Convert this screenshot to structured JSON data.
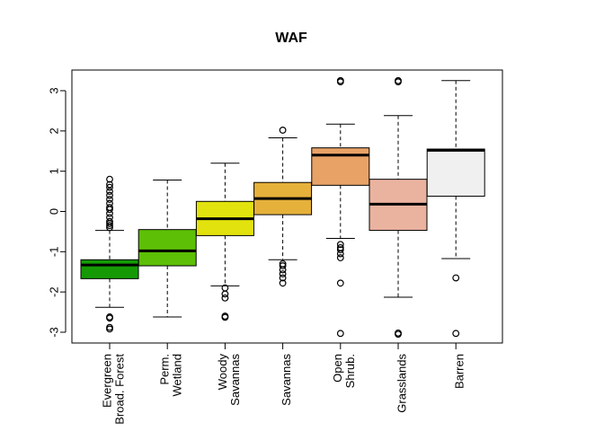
{
  "chart_data": {
    "type": "boxplot",
    "title": "WAF",
    "xlabel": "",
    "ylabel": "",
    "ylim": [
      -3.3,
      3.5
    ],
    "yticks": [
      "3",
      "2",
      "1",
      "0",
      "-1",
      "-2",
      "-3"
    ],
    "grid": false,
    "categories": [
      {
        "lines": [
          "Evergreen",
          "Broad. Forest"
        ],
        "color": "#159a06"
      },
      {
        "lines": [
          "Perm.",
          "Wetland"
        ],
        "color": "#5dbf06"
      },
      {
        "lines": [
          "Woody",
          "Savannas"
        ],
        "color": "#e2e20e"
      },
      {
        "lines": [
          "Savannas"
        ],
        "color": "#e6b13a"
      },
      {
        "lines": [
          "Open",
          "Shrub."
        ],
        "color": "#e8a266"
      },
      {
        "lines": [
          "Grasslands"
        ],
        "color": "#eab3a0"
      },
      {
        "lines": [
          "Barren"
        ],
        "color": "#f0f0f0"
      }
    ],
    "boxes": [
      {
        "min": -2.38,
        "q1": -1.67,
        "median": -1.33,
        "q3": -1.2,
        "max": -0.47,
        "outliers": [
          0.8,
          0.67,
          0.6,
          0.5,
          0.4,
          0.3,
          0.2,
          0.1,
          0.05,
          -0.05,
          -0.15,
          -0.25,
          -0.3,
          -0.35,
          -0.4,
          -2.62,
          -2.65,
          -2.88,
          -2.92
        ]
      },
      {
        "min": -2.62,
        "q1": -1.35,
        "median": -0.98,
        "q3": -0.45,
        "max": 0.78,
        "outliers": []
      },
      {
        "min": -1.85,
        "q1": -0.6,
        "median": -0.18,
        "q3": 0.25,
        "max": 1.2,
        "outliers": [
          -1.9,
          -2.05,
          -2.15,
          -2.6,
          -2.63
        ]
      },
      {
        "min": -1.2,
        "q1": -0.08,
        "median": 0.32,
        "q3": 0.72,
        "max": 1.83,
        "outliers": [
          2.02,
          -1.3,
          -1.35,
          -1.45,
          -1.55,
          -1.65,
          -1.78
        ]
      },
      {
        "min": -0.67,
        "q1": 0.65,
        "median": 1.4,
        "q3": 1.58,
        "max": 2.17,
        "outliers": [
          3.25,
          3.22,
          -0.82,
          -0.9,
          -0.95,
          -1.05,
          -1.15,
          -1.78,
          -3.03
        ]
      },
      {
        "min": -2.13,
        "q1": -0.47,
        "median": 0.18,
        "q3": 0.8,
        "max": 2.38,
        "outliers": [
          3.25,
          3.22,
          -3.02,
          -3.05
        ]
      },
      {
        "min": -1.17,
        "q1": 0.38,
        "median": 1.52,
        "q3": 1.55,
        "max": 3.25,
        "outliers": [
          -1.65,
          -3.03
        ]
      }
    ]
  }
}
